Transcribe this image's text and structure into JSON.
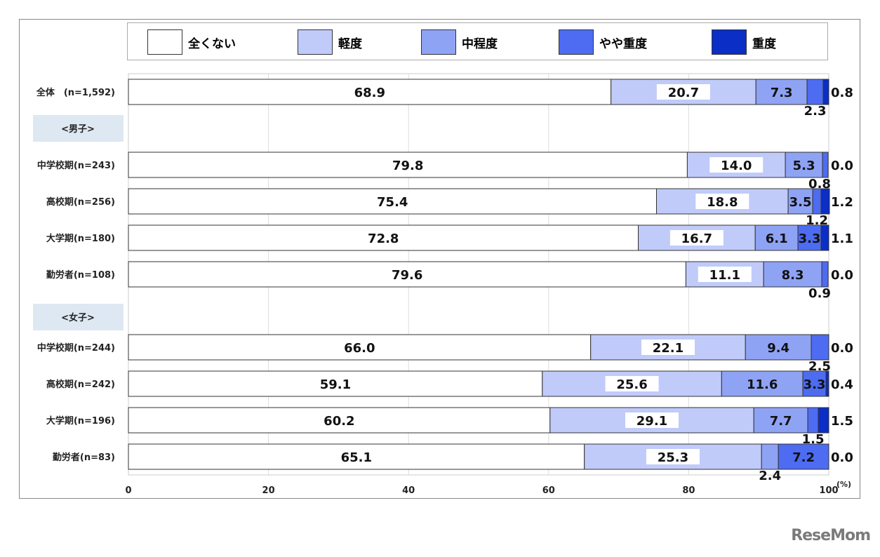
{
  "chart_data": {
    "type": "bar",
    "orientation": "horizontal-stacked-100",
    "legend_position": "top",
    "grid": true,
    "xlim": [
      0,
      100
    ],
    "xticks": [
      "0",
      "20",
      "40",
      "60",
      "80",
      "100"
    ],
    "x_unit": "(%)",
    "series": [
      {
        "name": "全くない",
        "color": "#ffffff"
      },
      {
        "name": "軽度",
        "color": "#c0cbfa"
      },
      {
        "name": "中程度",
        "color": "#8fa3f5"
      },
      {
        "name": "やや重度",
        "color": "#4d6cf2"
      },
      {
        "name": "重度",
        "color": "#0a2ec6"
      }
    ],
    "rows": [
      {
        "label": "全体　(n=1,592)",
        "values": [
          68.9,
          20.7,
          7.3,
          2.3,
          0.8
        ]
      },
      {
        "group": "<男子>"
      },
      {
        "label": "中学校期(n=243)",
        "values": [
          79.8,
          14.0,
          5.3,
          0.8,
          0.0
        ]
      },
      {
        "label": "高校期(n=256)",
        "values": [
          75.4,
          18.8,
          3.5,
          1.2,
          1.2
        ]
      },
      {
        "label": "大学期(n=180)",
        "values": [
          72.8,
          16.7,
          6.1,
          3.3,
          1.1
        ]
      },
      {
        "label": "勤労者(n=108)",
        "values": [
          79.6,
          11.1,
          8.3,
          0.9,
          0.0
        ]
      },
      {
        "group": "<女子>"
      },
      {
        "label": "中学校期(n=244)",
        "values": [
          66.0,
          22.1,
          9.4,
          2.5,
          0.0
        ]
      },
      {
        "label": "高校期(n=242)",
        "values": [
          59.1,
          25.6,
          11.6,
          3.3,
          0.4
        ]
      },
      {
        "label": "大学期(n=196)",
        "values": [
          60.2,
          29.1,
          7.7,
          1.5,
          1.5
        ]
      },
      {
        "label": "勤労者(n=83)",
        "values": [
          65.1,
          25.3,
          2.4,
          7.2,
          0.0
        ]
      }
    ]
  },
  "watermark": "ReseMom"
}
